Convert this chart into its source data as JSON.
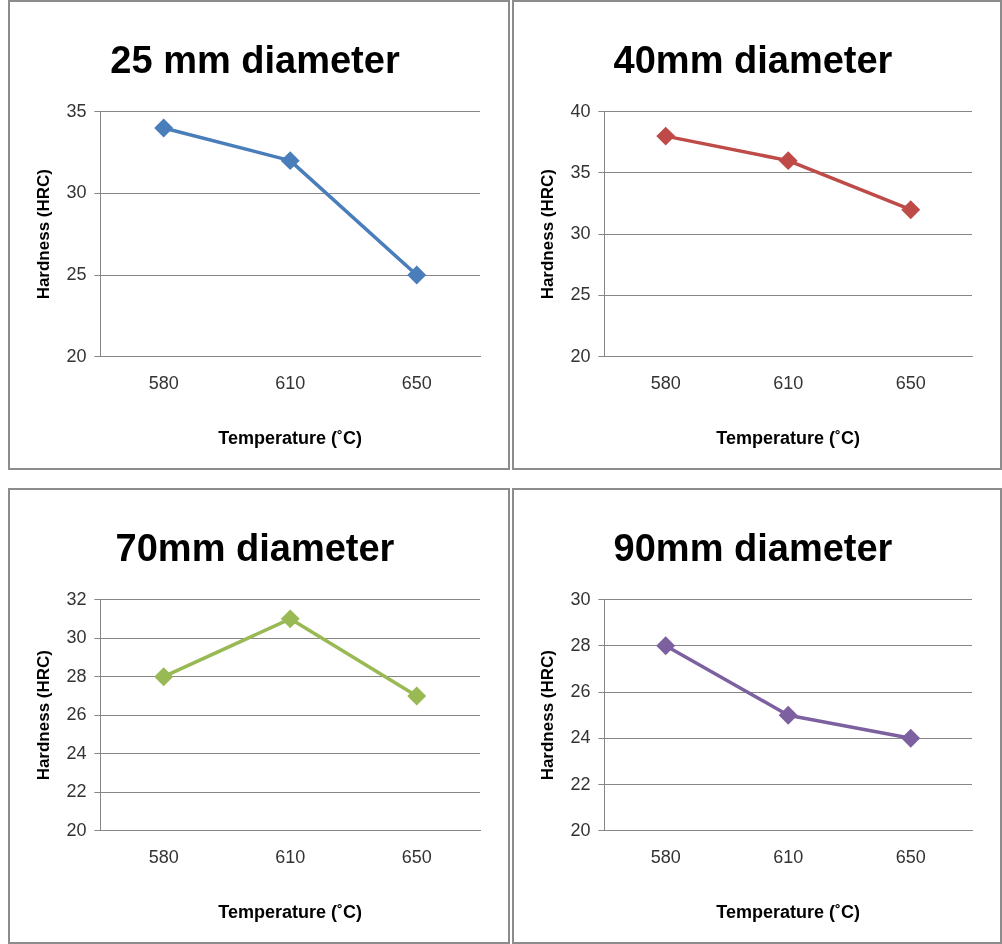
{
  "chart_data": [
    {
      "type": "line",
      "title": "25 mm diameter",
      "xlabel": "Temperature (˚C)",
      "ylabel": "Hardness (HRC)",
      "categories": [
        "580",
        "610",
        "650"
      ],
      "series": [
        {
          "color": "#4a7ebb",
          "values": [
            34,
            32,
            25
          ]
        }
      ],
      "ylim": [
        20,
        35
      ],
      "yticks": [
        20,
        25,
        30,
        35
      ],
      "grid": "y",
      "legend": false,
      "marker": "diamond"
    },
    {
      "type": "line",
      "title": "40mm diameter",
      "xlabel": "Temperature (˚C)",
      "ylabel": "Hardness (HRC)",
      "categories": [
        "580",
        "610",
        "650"
      ],
      "series": [
        {
          "color": "#be4b48",
          "values": [
            38,
            36,
            32
          ]
        }
      ],
      "ylim": [
        20,
        40
      ],
      "yticks": [
        20,
        25,
        30,
        35,
        40
      ],
      "grid": "y",
      "legend": false,
      "marker": "diamond"
    },
    {
      "type": "line",
      "title": "70mm diameter",
      "xlabel": "Temperature (˚C)",
      "ylabel": "Hardness (HRC)",
      "categories": [
        "580",
        "610",
        "650"
      ],
      "series": [
        {
          "color": "#98b954",
          "values": [
            28,
            31,
            27
          ]
        }
      ],
      "ylim": [
        20,
        32
      ],
      "yticks": [
        20,
        22,
        24,
        26,
        28,
        30,
        32
      ],
      "grid": "y",
      "legend": false,
      "marker": "diamond"
    },
    {
      "type": "line",
      "title": "90mm diameter",
      "xlabel": "Temperature (˚C)",
      "ylabel": "Hardness (HRC)",
      "categories": [
        "580",
        "610",
        "650"
      ],
      "series": [
        {
          "color": "#7d60a0",
          "values": [
            28,
            25,
            24
          ]
        }
      ],
      "ylim": [
        20,
        30
      ],
      "yticks": [
        20,
        22,
        24,
        26,
        28,
        30
      ],
      "grid": "y",
      "legend": false,
      "marker": "diamond"
    }
  ]
}
